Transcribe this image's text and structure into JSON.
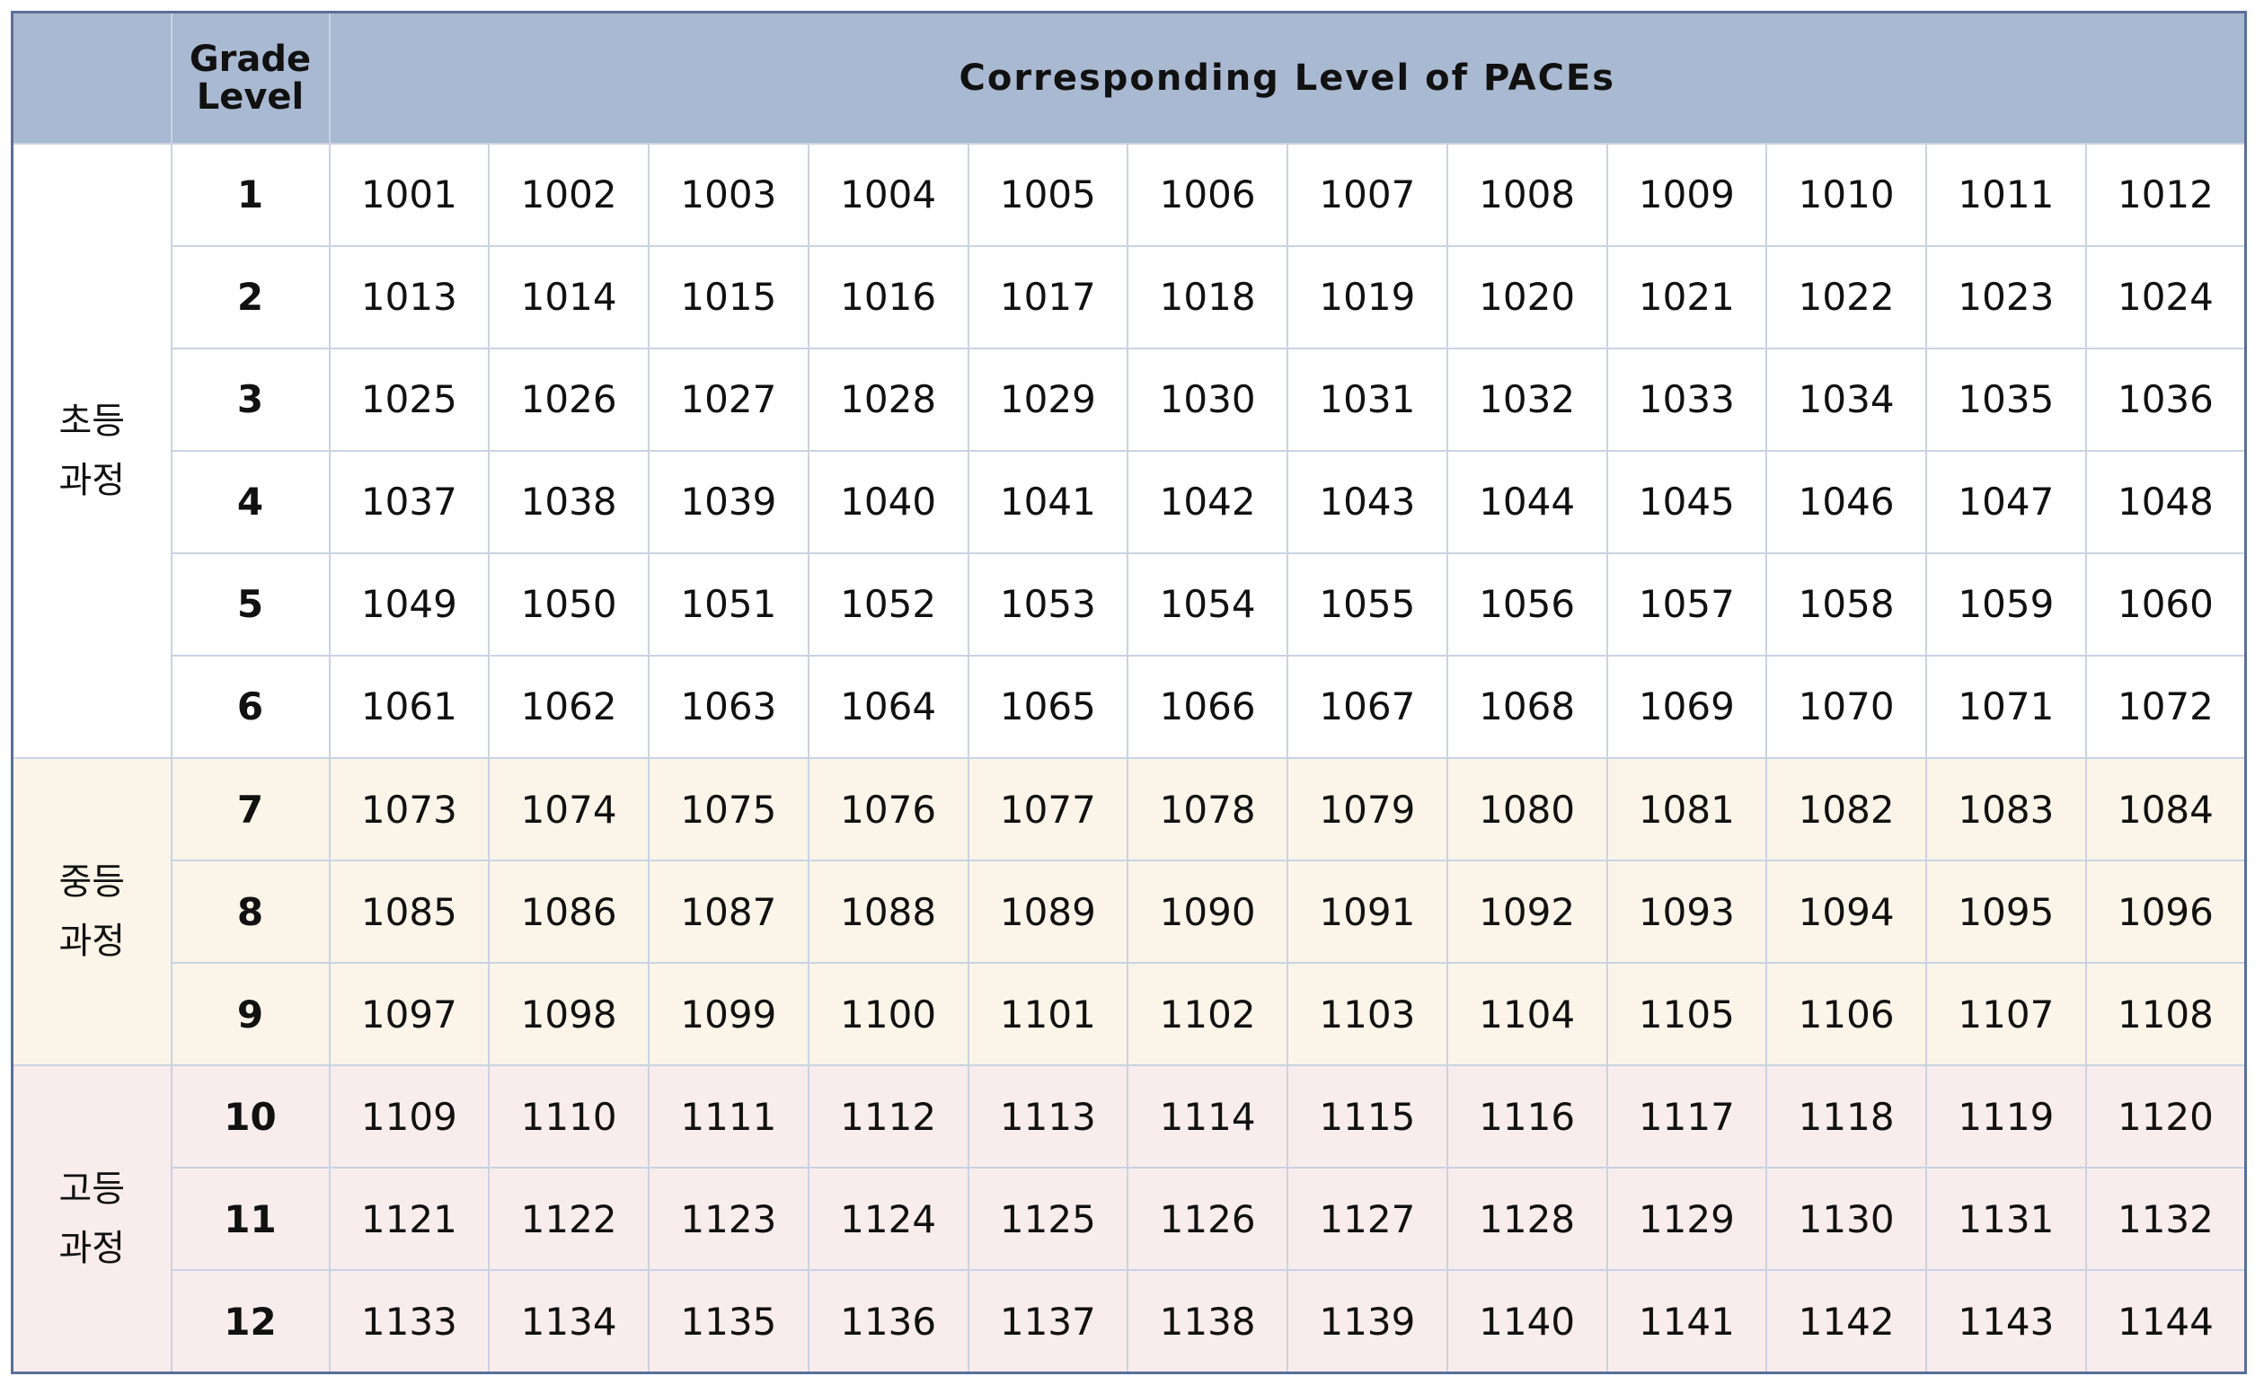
{
  "header": {
    "corner": "",
    "grade_line1": "Grade",
    "grade_line2": "Level",
    "paces_title": "Corresponding Level of PACEs"
  },
  "sections": [
    {
      "key": "elem",
      "label_line1": "초등",
      "label_line2": "과정",
      "rows": [
        {
          "grade": "1",
          "paces": [
            "1001",
            "1002",
            "1003",
            "1004",
            "1005",
            "1006",
            "1007",
            "1008",
            "1009",
            "1010",
            "1011",
            "1012"
          ]
        },
        {
          "grade": "2",
          "paces": [
            "1013",
            "1014",
            "1015",
            "1016",
            "1017",
            "1018",
            "1019",
            "1020",
            "1021",
            "1022",
            "1023",
            "1024"
          ]
        },
        {
          "grade": "3",
          "paces": [
            "1025",
            "1026",
            "1027",
            "1028",
            "1029",
            "1030",
            "1031",
            "1032",
            "1033",
            "1034",
            "1035",
            "1036"
          ]
        },
        {
          "grade": "4",
          "paces": [
            "1037",
            "1038",
            "1039",
            "1040",
            "1041",
            "1042",
            "1043",
            "1044",
            "1045",
            "1046",
            "1047",
            "1048"
          ]
        },
        {
          "grade": "5",
          "paces": [
            "1049",
            "1050",
            "1051",
            "1052",
            "1053",
            "1054",
            "1055",
            "1056",
            "1057",
            "1058",
            "1059",
            "1060"
          ]
        },
        {
          "grade": "6",
          "paces": [
            "1061",
            "1062",
            "1063",
            "1064",
            "1065",
            "1066",
            "1067",
            "1068",
            "1069",
            "1070",
            "1071",
            "1072"
          ]
        }
      ]
    },
    {
      "key": "mid",
      "label_line1": "중등",
      "label_line2": "과정",
      "rows": [
        {
          "grade": "7",
          "paces": [
            "1073",
            "1074",
            "1075",
            "1076",
            "1077",
            "1078",
            "1079",
            "1080",
            "1081",
            "1082",
            "1083",
            "1084"
          ]
        },
        {
          "grade": "8",
          "paces": [
            "1085",
            "1086",
            "1087",
            "1088",
            "1089",
            "1090",
            "1091",
            "1092",
            "1093",
            "1094",
            "1095",
            "1096"
          ]
        },
        {
          "grade": "9",
          "paces": [
            "1097",
            "1098",
            "1099",
            "1100",
            "1101",
            "1102",
            "1103",
            "1104",
            "1105",
            "1106",
            "1107",
            "1108"
          ]
        }
      ]
    },
    {
      "key": "high",
      "label_line1": "고등",
      "label_line2": "과정",
      "rows": [
        {
          "grade": "10",
          "paces": [
            "1109",
            "1110",
            "1111",
            "1112",
            "1113",
            "1114",
            "1115",
            "1116",
            "1117",
            "1118",
            "1119",
            "1120"
          ]
        },
        {
          "grade": "11",
          "paces": [
            "1121",
            "1122",
            "1123",
            "1124",
            "1125",
            "1126",
            "1127",
            "1128",
            "1129",
            "1130",
            "1131",
            "1132"
          ]
        },
        {
          "grade": "12",
          "paces": [
            "1133",
            "1134",
            "1135",
            "1136",
            "1137",
            "1138",
            "1139",
            "1140",
            "1141",
            "1142",
            "1143",
            "1144"
          ]
        }
      ]
    }
  ],
  "colors": {
    "header_bg": "#aab9d2",
    "elementary_bg": "#ffffff",
    "middle_bg": "#faf5e8",
    "high_bg": "#f8ecec",
    "border": "#c9d3e3",
    "outer_border": "#5a6f98"
  }
}
